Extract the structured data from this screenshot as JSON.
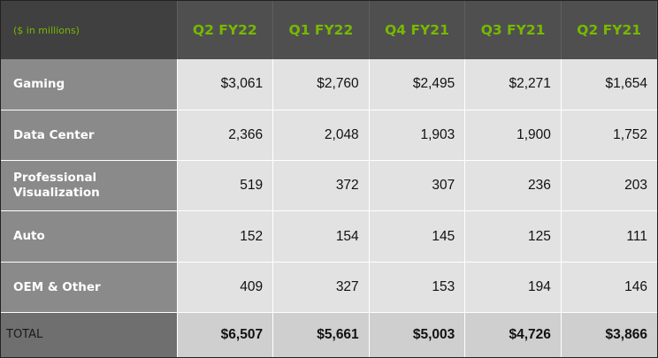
{
  "chart_data": {
    "type": "table",
    "units_label": "($ in millions)",
    "columns": [
      "Q2 FY22",
      "Q1 FY22",
      "Q4 FY21",
      "Q3 FY21",
      "Q2 FY21"
    ],
    "rows": [
      {
        "label": "Gaming",
        "values": [
          "$3,061",
          "$2,760",
          "$2,495",
          "$2,271",
          "$1,654"
        ]
      },
      {
        "label": "Data Center",
        "values": [
          "2,366",
          "2,048",
          "1,903",
          "1,900",
          "1,752"
        ]
      },
      {
        "label": "Professional Visualization",
        "label_line1": "Professional",
        "label_line2": "Visualization",
        "values": [
          "519",
          "372",
          "307",
          "236",
          "203"
        ]
      },
      {
        "label": "Auto",
        "values": [
          "152",
          "154",
          "145",
          "125",
          "111"
        ]
      },
      {
        "label": "OEM & Other",
        "values": [
          "409",
          "327",
          "153",
          "194",
          "146"
        ]
      }
    ],
    "total": {
      "label": "TOTAL",
      "values": [
        "$6,507",
        "$5,661",
        "$5,003",
        "$4,726",
        "$3,866"
      ]
    }
  },
  "colors": {
    "header_background": "#4f4f4f",
    "header_text": "#76b900",
    "row_label_background": "#8a8a8a",
    "cell_background": "#e2e2e2",
    "total_label_background": "#6f6f6f",
    "total_cell_background": "#cfcfcf"
  }
}
